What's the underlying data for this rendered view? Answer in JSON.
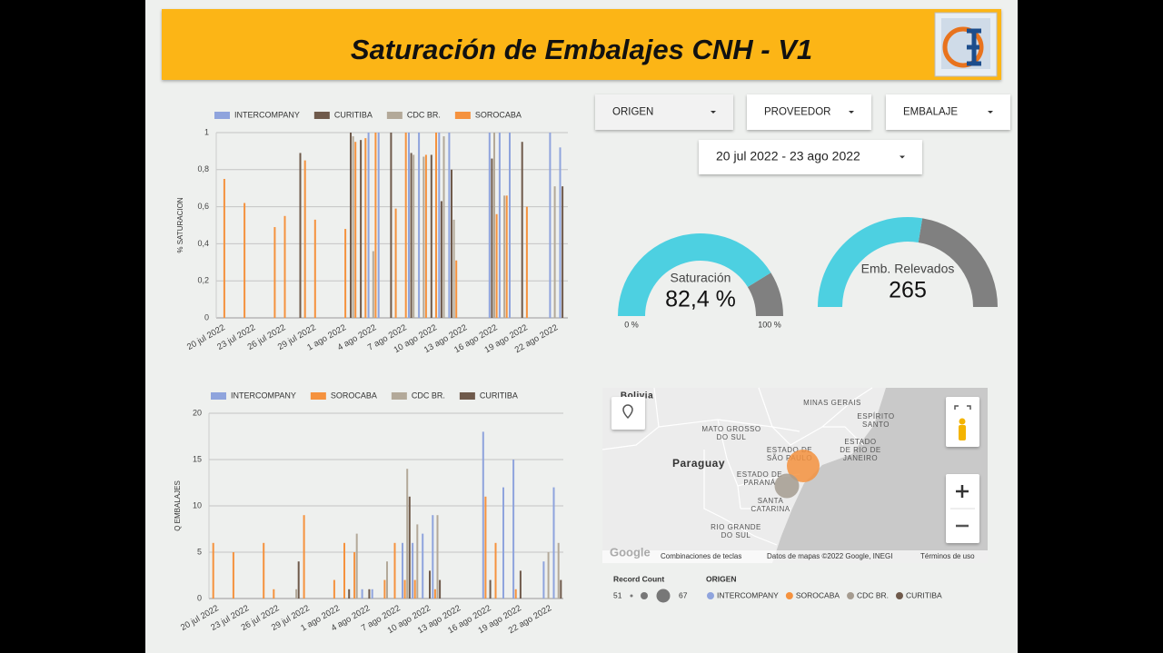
{
  "header": {
    "title": "Saturación de Embalajes CNH - V1"
  },
  "filters": {
    "origen": "ORIGEN",
    "proveedor": "PROVEEDOR",
    "embalaje": "EMBALAJE",
    "date_range": "20 jul 2022 - 23 ago 2022"
  },
  "chart_data": [
    {
      "type": "bar",
      "y_label": "% SATURACION",
      "categories": [
        "20 jul 2022",
        null,
        null,
        "23 jul 2022",
        null,
        null,
        "26 jul 2022",
        null,
        null,
        "29 jul 2022",
        null,
        null,
        "1 ago 2022",
        null,
        null,
        "4 ago 2022",
        null,
        null,
        "7 ago 2022",
        null,
        null,
        "10 ago 2022",
        null,
        null,
        "13 ago 2022",
        null,
        null,
        "16 ago 2022",
        null,
        null,
        "19 ago 2022",
        null,
        null,
        "22 ago 2022",
        null
      ],
      "series": [
        {
          "name": "INTERCOMPANY",
          "color": "#8fa4dd",
          "values": [
            null,
            null,
            null,
            null,
            null,
            null,
            null,
            null,
            null,
            null,
            null,
            null,
            null,
            null,
            null,
            1,
            1,
            null,
            null,
            1,
            1,
            null,
            1,
            1,
            null,
            null,
            null,
            1,
            1,
            1,
            null,
            null,
            null,
            1,
            0.92
          ]
        },
        {
          "name": "CURITIBA",
          "color": "#6f5a4b",
          "values": [
            null,
            null,
            null,
            null,
            null,
            null,
            null,
            null,
            0.89,
            null,
            null,
            null,
            null,
            1,
            0.96,
            null,
            null,
            1,
            null,
            0.89,
            null,
            0.88,
            0.63,
            0.8,
            null,
            null,
            null,
            0.86,
            null,
            null,
            0.95,
            null,
            null,
            null,
            0.71
          ]
        },
        {
          "name": "CDC BR.",
          "color": "#b3a999",
          "values": [
            null,
            null,
            null,
            null,
            null,
            null,
            null,
            null,
            null,
            null,
            null,
            null,
            null,
            0.98,
            null,
            0.36,
            null,
            null,
            null,
            0.88,
            0.87,
            null,
            0.98,
            0.53,
            null,
            null,
            null,
            1,
            0.66,
            null,
            null,
            null,
            null,
            0.71,
            null
          ]
        },
        {
          "name": "SOROCABA",
          "color": "#f5923e",
          "values": [
            0.75,
            null,
            0.62,
            null,
            null,
            0.49,
            0.55,
            null,
            0.85,
            0.53,
            null,
            null,
            0.48,
            0.95,
            0.97,
            1,
            null,
            0.59,
            1,
            null,
            0.88,
            1,
            null,
            0.31,
            null,
            null,
            null,
            0.56,
            0.66,
            null,
            0.6,
            null,
            null,
            null,
            null
          ]
        }
      ],
      "ylim": [
        0,
        1
      ],
      "yticks": [
        0,
        {
          "value": 0.2,
          "label": "0,2"
        },
        {
          "value": 0.4,
          "label": "0,4"
        },
        {
          "value": 0.6,
          "label": "0,6"
        },
        {
          "value": 0.8,
          "label": "0,8"
        },
        1
      ],
      "grid": true
    },
    {
      "type": "bar",
      "y_label": "Q EMBALAJES",
      "categories": [
        "20 jul 2022",
        null,
        null,
        "23 jul 2022",
        null,
        null,
        "26 jul 2022",
        null,
        null,
        "29 jul 2022",
        null,
        null,
        "1 ago 2022",
        null,
        null,
        "4 ago 2022",
        null,
        null,
        "7 ago 2022",
        null,
        null,
        "10 ago 2022",
        null,
        null,
        "13 ago 2022",
        null,
        null,
        "16 ago 2022",
        null,
        null,
        "19 ago 2022",
        null,
        null,
        "22 ago 2022",
        null
      ],
      "series": [
        {
          "name": "INTERCOMPANY",
          "color": "#8fa4dd",
          "values": [
            null,
            null,
            null,
            null,
            null,
            null,
            null,
            null,
            null,
            null,
            null,
            null,
            null,
            null,
            null,
            1,
            1,
            null,
            null,
            6,
            6,
            7,
            9,
            null,
            null,
            null,
            null,
            18,
            null,
            12,
            15,
            null,
            null,
            4,
            12
          ]
        },
        {
          "name": "SOROCABA",
          "color": "#f5923e",
          "values": [
            6,
            null,
            5,
            null,
            null,
            6,
            1,
            null,
            null,
            9,
            null,
            null,
            2,
            6,
            5,
            null,
            null,
            2,
            6,
            2,
            2,
            null,
            1,
            null,
            null,
            null,
            null,
            11,
            6,
            null,
            1,
            null,
            null,
            null,
            null
          ]
        },
        {
          "name": "CDC BR.",
          "color": "#b3a999",
          "values": [
            null,
            null,
            null,
            null,
            null,
            null,
            null,
            null,
            1,
            null,
            null,
            null,
            null,
            null,
            7,
            null,
            null,
            4,
            null,
            14,
            8,
            null,
            9,
            null,
            null,
            null,
            null,
            null,
            null,
            null,
            null,
            null,
            null,
            5,
            6
          ]
        },
        {
          "name": "CURITIBA",
          "color": "#6f5a4b",
          "values": [
            null,
            null,
            null,
            null,
            null,
            null,
            null,
            null,
            4,
            null,
            null,
            null,
            null,
            1,
            null,
            1,
            null,
            null,
            null,
            11,
            null,
            3,
            2,
            null,
            null,
            null,
            null,
            2,
            null,
            null,
            3,
            null,
            null,
            null,
            2
          ]
        }
      ],
      "ylim": [
        0,
        20
      ],
      "yticks": [
        0,
        5,
        10,
        15,
        20
      ],
      "grid": true
    },
    {
      "type": "gauge",
      "title": "Saturación",
      "value": 82.4,
      "value_label": "82,4 %",
      "range": [
        0,
        100
      ],
      "ticks": [
        {
          "value": 0,
          "label": "0 %"
        },
        {
          "value": 100,
          "label": "100 %"
        }
      ],
      "color": "#4dd0e1",
      "track_color": "#808080"
    },
    {
      "type": "gauge",
      "title": "Emb. Relevados",
      "value": 265,
      "range": [
        0,
        480
      ],
      "color": "#4dd0e1",
      "track_color": "#808080"
    },
    {
      "type": "map",
      "place_labels": [
        [
          "Bolivia"
        ],
        [
          "MINAS GERAIS"
        ],
        [
          "ESPÍRITO",
          "SANTO"
        ],
        [
          "MATO GROSSO",
          "DO SUL"
        ],
        [
          "Paraguay"
        ],
        [
          "ESTADO DE",
          "SÃO PAULO"
        ],
        [
          "ESTADO",
          "DE RIO DE",
          "JANEIRO"
        ],
        [
          "ESTADO DE",
          "PARANÁ"
        ],
        [
          "SANTA",
          "CATARINA"
        ],
        [
          "RIO GRANDE",
          "DO SUL"
        ]
      ],
      "attribution": [
        "Google",
        "Combinaciones de teclas",
        "Datos de mapas ©2022 Google, INEGI",
        "Términos de uso"
      ],
      "size_legend": {
        "title": "Record Count",
        "ticks": [
          51,
          67
        ]
      },
      "color_legend_title": "ORIGEN",
      "series": [
        {
          "name": "INTERCOMPANY",
          "color": "#8fa4dd",
          "record_count": null
        },
        {
          "name": "SOROCABA",
          "color": "#f5923e",
          "record_count": 67
        },
        {
          "name": "CDC BR.",
          "color": "#a59c90",
          "record_count": 58
        },
        {
          "name": "CURITIBA",
          "color": "#6f5a4b",
          "record_count": null
        }
      ]
    }
  ]
}
